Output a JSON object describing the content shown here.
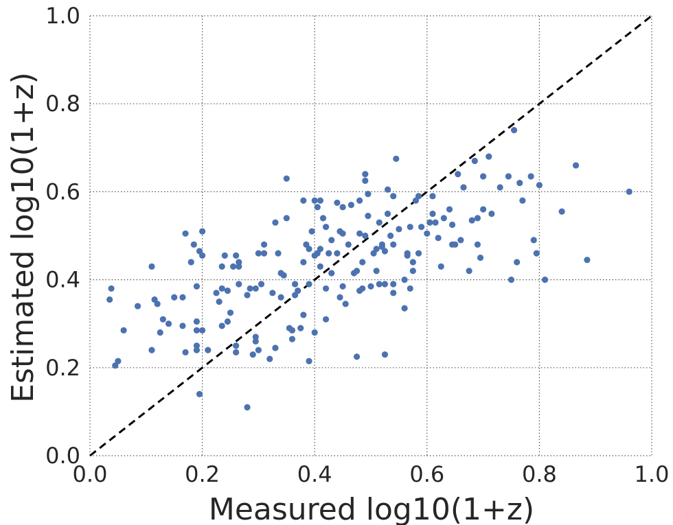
{
  "chart_data": {
    "type": "scatter",
    "xlabel": "Measured log10(1+z)",
    "ylabel": "Estimated log10(1+z)",
    "xlim": [
      0.0,
      1.0
    ],
    "ylim": [
      0.0,
      1.0
    ],
    "x_ticks": [
      "0.0",
      "0.2",
      "0.4",
      "0.6",
      "0.8",
      "1.0"
    ],
    "y_ticks": [
      "0.0",
      "0.2",
      "0.4",
      "0.6",
      "0.8",
      "1.0"
    ],
    "grid": true,
    "reference_line": {
      "style": "dashed",
      "color": "#000000",
      "from": [
        0.0,
        0.0
      ],
      "to": [
        1.0,
        1.0
      ]
    },
    "point_color": "#4c72b0",
    "series": [
      {
        "points": [
          [
            0.035,
            0.355
          ],
          [
            0.038,
            0.38
          ],
          [
            0.045,
            0.205
          ],
          [
            0.05,
            0.215
          ],
          [
            0.06,
            0.285
          ],
          [
            0.085,
            0.34
          ],
          [
            0.11,
            0.24
          ],
          [
            0.11,
            0.43
          ],
          [
            0.115,
            0.355
          ],
          [
            0.12,
            0.345
          ],
          [
            0.125,
            0.28
          ],
          [
            0.13,
            0.31
          ],
          [
            0.14,
            0.3
          ],
          [
            0.15,
            0.36
          ],
          [
            0.165,
            0.36
          ],
          [
            0.165,
            0.295
          ],
          [
            0.17,
            0.235
          ],
          [
            0.17,
            0.505
          ],
          [
            0.18,
            0.44
          ],
          [
            0.185,
            0.48
          ],
          [
            0.19,
            0.24
          ],
          [
            0.19,
            0.305
          ],
          [
            0.19,
            0.385
          ],
          [
            0.19,
            0.285
          ],
          [
            0.19,
            0.25
          ],
          [
            0.195,
            0.465
          ],
          [
            0.195,
            0.14
          ],
          [
            0.2,
            0.455
          ],
          [
            0.2,
            0.285
          ],
          [
            0.2,
            0.51
          ],
          [
            0.21,
            0.24
          ],
          [
            0.225,
            0.37
          ],
          [
            0.23,
            0.35
          ],
          [
            0.235,
            0.38
          ],
          [
            0.235,
            0.295
          ],
          [
            0.235,
            0.43
          ],
          [
            0.24,
            0.455
          ],
          [
            0.245,
            0.375
          ],
          [
            0.245,
            0.305
          ],
          [
            0.25,
            0.325
          ],
          [
            0.255,
            0.43
          ],
          [
            0.26,
            0.25
          ],
          [
            0.26,
            0.235
          ],
          [
            0.26,
            0.455
          ],
          [
            0.265,
            0.43
          ],
          [
            0.265,
            0.44
          ],
          [
            0.265,
            0.39
          ],
          [
            0.28,
            0.365
          ],
          [
            0.28,
            0.11
          ],
          [
            0.285,
            0.38
          ],
          [
            0.29,
            0.23
          ],
          [
            0.295,
            0.26
          ],
          [
            0.295,
            0.27
          ],
          [
            0.295,
            0.38
          ],
          [
            0.3,
            0.24
          ],
          [
            0.3,
            0.46
          ],
          [
            0.305,
            0.39
          ],
          [
            0.31,
            0.48
          ],
          [
            0.31,
            0.46
          ],
          [
            0.32,
            0.22
          ],
          [
            0.325,
            0.37
          ],
          [
            0.33,
            0.53
          ],
          [
            0.33,
            0.245
          ],
          [
            0.335,
            0.46
          ],
          [
            0.34,
            0.415
          ],
          [
            0.34,
            0.36
          ],
          [
            0.345,
            0.41
          ],
          [
            0.35,
            0.63
          ],
          [
            0.35,
            0.54
          ],
          [
            0.355,
            0.29
          ],
          [
            0.36,
            0.285
          ],
          [
            0.36,
            0.265
          ],
          [
            0.365,
            0.39
          ],
          [
            0.365,
            0.365
          ],
          [
            0.37,
            0.375
          ],
          [
            0.375,
            0.29
          ],
          [
            0.38,
            0.32
          ],
          [
            0.38,
            0.44
          ],
          [
            0.38,
            0.58
          ],
          [
            0.385,
            0.48
          ],
          [
            0.39,
            0.47
          ],
          [
            0.39,
            0.39
          ],
          [
            0.39,
            0.215
          ],
          [
            0.395,
            0.51
          ],
          [
            0.4,
            0.455
          ],
          [
            0.4,
            0.28
          ],
          [
            0.4,
            0.58
          ],
          [
            0.405,
            0.565
          ],
          [
            0.405,
            0.46
          ],
          [
            0.41,
            0.43
          ],
          [
            0.41,
            0.47
          ],
          [
            0.41,
            0.58
          ],
          [
            0.415,
            0.54
          ],
          [
            0.42,
            0.52
          ],
          [
            0.42,
            0.38
          ],
          [
            0.42,
            0.31
          ],
          [
            0.425,
            0.46
          ],
          [
            0.43,
            0.49
          ],
          [
            0.43,
            0.415
          ],
          [
            0.44,
            0.575
          ],
          [
            0.44,
            0.46
          ],
          [
            0.445,
            0.36
          ],
          [
            0.445,
            0.51
          ],
          [
            0.45,
            0.385
          ],
          [
            0.45,
            0.505
          ],
          [
            0.45,
            0.565
          ],
          [
            0.455,
            0.345
          ],
          [
            0.46,
            0.48
          ],
          [
            0.465,
            0.57
          ],
          [
            0.47,
            0.415
          ],
          [
            0.475,
            0.42
          ],
          [
            0.475,
            0.225
          ],
          [
            0.48,
            0.505
          ],
          [
            0.48,
            0.58
          ],
          [
            0.48,
            0.375
          ],
          [
            0.485,
            0.44
          ],
          [
            0.485,
            0.38
          ],
          [
            0.49,
            0.5
          ],
          [
            0.49,
            0.625
          ],
          [
            0.49,
            0.64
          ],
          [
            0.495,
            0.595
          ],
          [
            0.495,
            0.545
          ],
          [
            0.5,
            0.385
          ],
          [
            0.505,
            0.46
          ],
          [
            0.51,
            0.47
          ],
          [
            0.51,
            0.42
          ],
          [
            0.515,
            0.53
          ],
          [
            0.515,
            0.39
          ],
          [
            0.52,
            0.48
          ],
          [
            0.52,
            0.475
          ],
          [
            0.525,
            0.465
          ],
          [
            0.525,
            0.39
          ],
          [
            0.525,
            0.23
          ],
          [
            0.53,
            0.605
          ],
          [
            0.53,
            0.55
          ],
          [
            0.535,
            0.5
          ],
          [
            0.54,
            0.59
          ],
          [
            0.54,
            0.48
          ],
          [
            0.54,
            0.37
          ],
          [
            0.54,
            0.39
          ],
          [
            0.545,
            0.675
          ],
          [
            0.55,
            0.515
          ],
          [
            0.56,
            0.4
          ],
          [
            0.56,
            0.335
          ],
          [
            0.565,
            0.455
          ],
          [
            0.565,
            0.46
          ],
          [
            0.57,
            0.52
          ],
          [
            0.57,
            0.38
          ],
          [
            0.575,
            0.42
          ],
          [
            0.575,
            0.44
          ],
          [
            0.58,
            0.58
          ],
          [
            0.585,
            0.59
          ],
          [
            0.585,
            0.46
          ],
          [
            0.59,
            0.52
          ],
          [
            0.6,
            0.505
          ],
          [
            0.605,
            0.53
          ],
          [
            0.61,
            0.59
          ],
          [
            0.61,
            0.55
          ],
          [
            0.615,
            0.53
          ],
          [
            0.62,
            0.495
          ],
          [
            0.625,
            0.43
          ],
          [
            0.63,
            0.54
          ],
          [
            0.64,
            0.56
          ],
          [
            0.645,
            0.525
          ],
          [
            0.645,
            0.48
          ],
          [
            0.65,
            0.48
          ],
          [
            0.655,
            0.64
          ],
          [
            0.66,
            0.49
          ],
          [
            0.665,
            0.61
          ],
          [
            0.675,
            0.42
          ],
          [
            0.68,
            0.535
          ],
          [
            0.685,
            0.67
          ],
          [
            0.69,
            0.48
          ],
          [
            0.69,
            0.54
          ],
          [
            0.695,
            0.45
          ],
          [
            0.7,
            0.635
          ],
          [
            0.7,
            0.56
          ],
          [
            0.71,
            0.68
          ],
          [
            0.715,
            0.55
          ],
          [
            0.73,
            0.61
          ],
          [
            0.745,
            0.635
          ],
          [
            0.75,
            0.4
          ],
          [
            0.755,
            0.74
          ],
          [
            0.76,
            0.44
          ],
          [
            0.765,
            0.62
          ],
          [
            0.77,
            0.58
          ],
          [
            0.785,
            0.635
          ],
          [
            0.79,
            0.49
          ],
          [
            0.795,
            0.46
          ],
          [
            0.8,
            0.615
          ],
          [
            0.81,
            0.4
          ],
          [
            0.84,
            0.555
          ],
          [
            0.865,
            0.66
          ],
          [
            0.885,
            0.445
          ],
          [
            0.96,
            0.6
          ]
        ]
      }
    ]
  }
}
